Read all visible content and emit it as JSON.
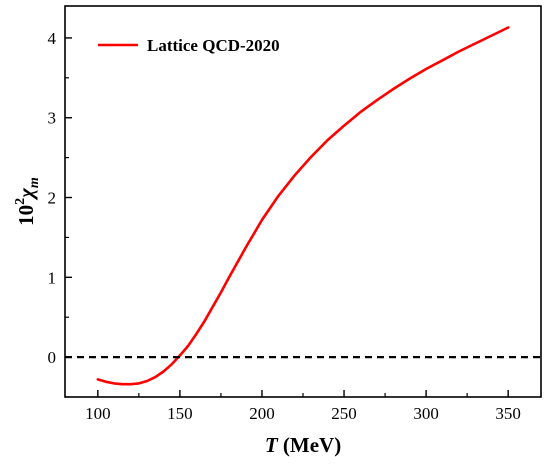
{
  "chart_data": {
    "type": "line",
    "xlabel_var": "T",
    "xlabel_unit": " (MeV)",
    "ylabel_base": "10",
    "ylabel_sup": "2",
    "ylabel_var": "χ",
    "ylabel_sub": "m",
    "xlim": [
      80,
      370
    ],
    "ylim": [
      -0.5,
      4.4
    ],
    "x_ticks": [
      100,
      150,
      200,
      250,
      300,
      350
    ],
    "y_ticks": [
      0,
      1,
      2,
      3,
      4
    ],
    "grid": false,
    "legend_position": "top-left",
    "series": [
      {
        "name": "Lattice QCD-2020",
        "color": "#ff0000",
        "style": "solid",
        "points": [
          [
            100,
            -0.28
          ],
          [
            105,
            -0.31
          ],
          [
            110,
            -0.33
          ],
          [
            115,
            -0.34
          ],
          [
            120,
            -0.34
          ],
          [
            125,
            -0.33
          ],
          [
            130,
            -0.3
          ],
          [
            135,
            -0.25
          ],
          [
            140,
            -0.18
          ],
          [
            145,
            -0.09
          ],
          [
            150,
            0.02
          ],
          [
            155,
            0.14
          ],
          [
            160,
            0.29
          ],
          [
            165,
            0.45
          ],
          [
            170,
            0.63
          ],
          [
            175,
            0.81
          ],
          [
            180,
            1.0
          ],
          [
            190,
            1.37
          ],
          [
            200,
            1.72
          ],
          [
            210,
            2.02
          ],
          [
            220,
            2.28
          ],
          [
            230,
            2.51
          ],
          [
            240,
            2.72
          ],
          [
            250,
            2.9
          ],
          [
            260,
            3.07
          ],
          [
            270,
            3.22
          ],
          [
            280,
            3.36
          ],
          [
            290,
            3.49
          ],
          [
            300,
            3.61
          ],
          [
            310,
            3.72
          ],
          [
            320,
            3.83
          ],
          [
            330,
            3.93
          ],
          [
            340,
            4.03
          ],
          [
            350,
            4.13
          ]
        ]
      },
      {
        "color": "#000000",
        "style": "dashed",
        "points": [
          [
            80,
            0
          ],
          [
            370,
            0
          ]
        ]
      }
    ]
  }
}
